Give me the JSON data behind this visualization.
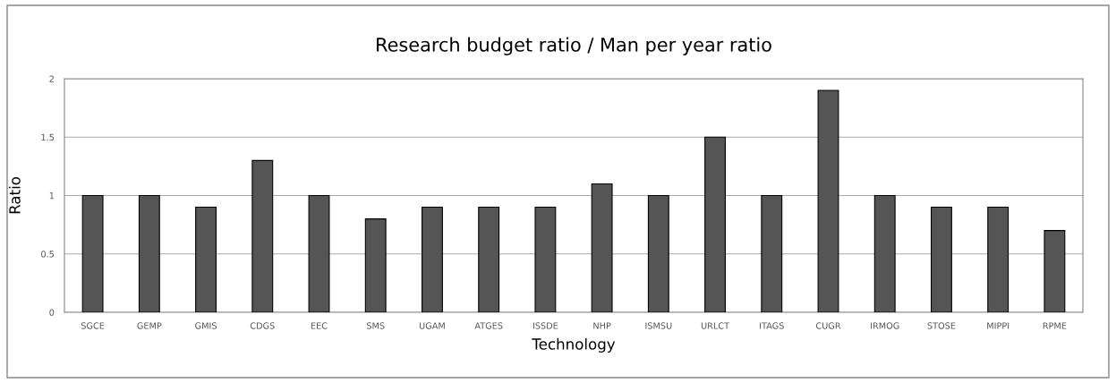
{
  "chart_data": {
    "type": "bar",
    "title": "Research budget ratio / Man per year ratio",
    "xlabel": "Technology",
    "ylabel": "Ratio",
    "categories": [
      "SGCE",
      "GEMP",
      "GMIS",
      "CDGS",
      "EEC",
      "SMS",
      "UGAM",
      "ATGES",
      "ISSDE",
      "NHP",
      "ISMSU",
      "URLCT",
      "ITAGS",
      "CUGR",
      "IRMOG",
      "STOSE",
      "MIPPI",
      "RPME"
    ],
    "values": [
      1,
      1,
      0.9,
      1.3,
      1,
      0.8,
      0.9,
      0.9,
      0.9,
      1.1,
      1,
      1.5,
      1,
      1.9,
      1,
      0.9,
      0.9,
      0.7
    ],
    "color": "#555555",
    "ylim": [
      0,
      2
    ],
    "yticks": [
      0,
      0.5,
      1,
      1.5,
      2
    ],
    "grid": "y",
    "legend": false
  }
}
